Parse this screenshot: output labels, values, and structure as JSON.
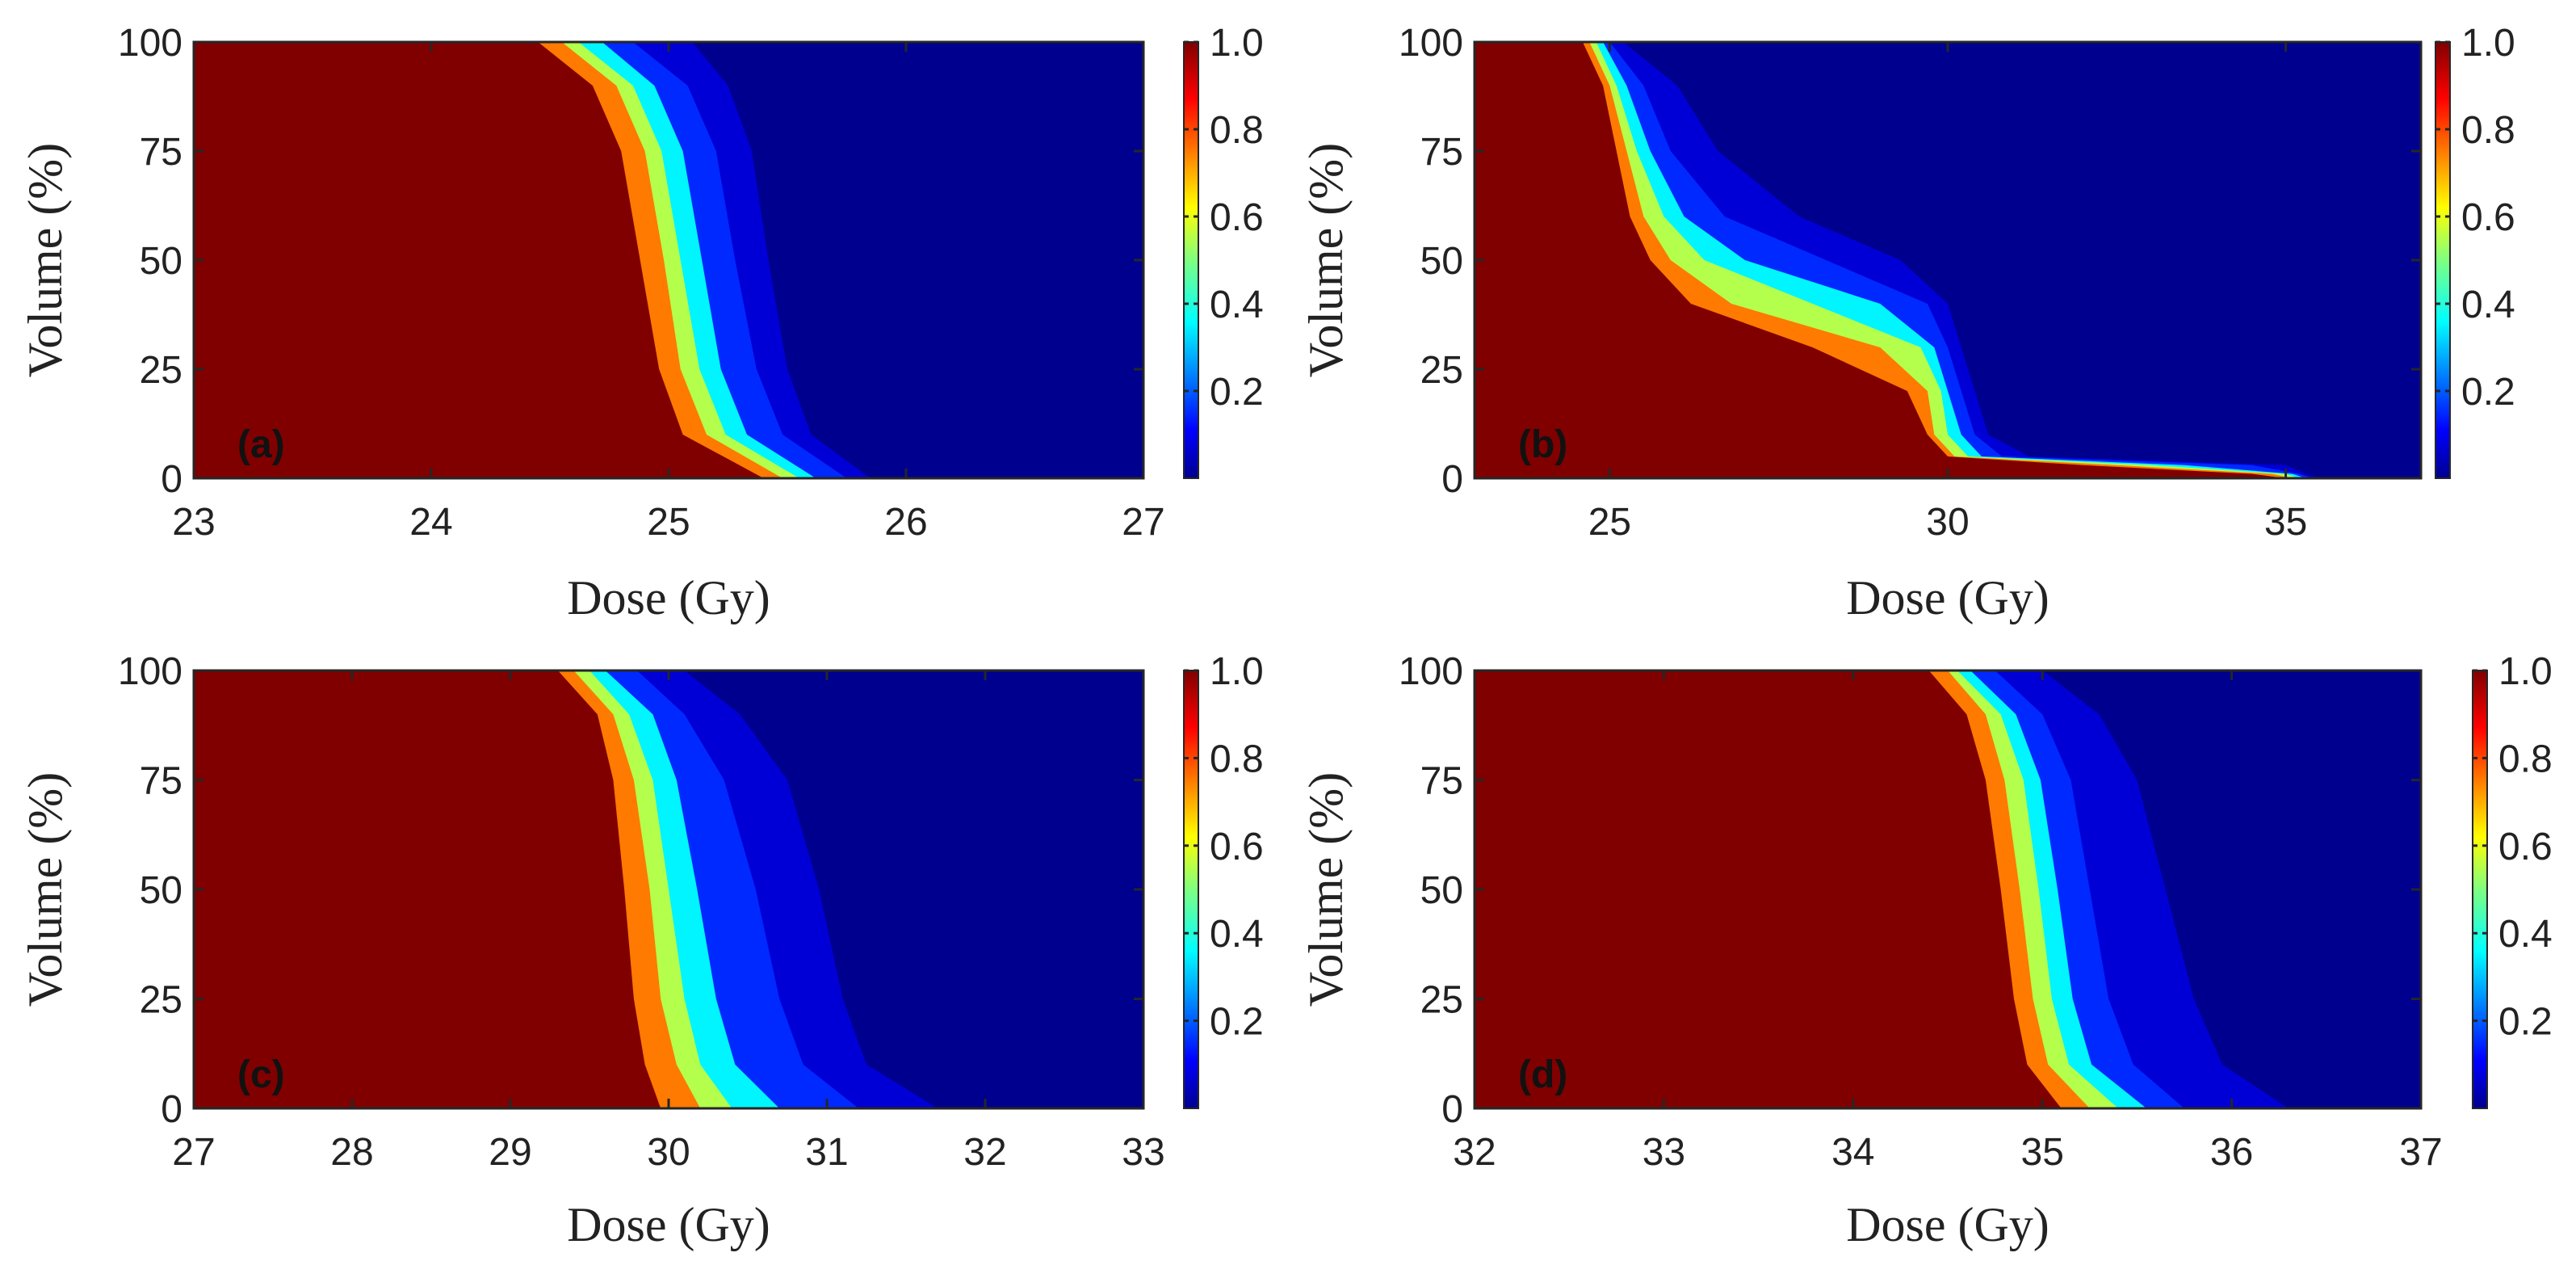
{
  "chart_data": [
    {
      "type": "heatmap",
      "panel_label": "(a)",
      "xlabel": "Dose (Gy)",
      "ylabel": "Volume (%)",
      "xlim": [
        23,
        27
      ],
      "ylim": [
        0,
        100
      ],
      "xticks": [
        23,
        24,
        25,
        26,
        27
      ],
      "xtick_labels": [
        "23",
        "24",
        "25",
        "26",
        "27"
      ],
      "yticks": [
        0,
        25,
        50,
        75,
        100
      ],
      "ytick_labels": [
        "0",
        "25",
        "50",
        "75",
        "100"
      ],
      "colorbar": {
        "range": [
          0,
          1
        ],
        "ticks": [
          0.2,
          0.4,
          0.6,
          0.8,
          1.0
        ],
        "tick_labels": [
          "0.2",
          "0.4",
          "0.6",
          "0.8",
          "1.0"
        ]
      },
      "volume_levels": [
        100,
        90,
        75,
        50,
        25,
        10,
        0
      ],
      "band_dose": {
        "0.9": [
          24.45,
          24.68,
          24.8,
          24.88,
          24.96,
          25.06,
          25.4
        ],
        "0.7": [
          24.55,
          24.78,
          24.9,
          24.98,
          25.05,
          25.16,
          25.48
        ],
        "0.5": [
          24.62,
          24.85,
          24.97,
          25.05,
          25.13,
          25.24,
          25.55
        ],
        "0.3": [
          24.72,
          24.94,
          25.06,
          25.14,
          25.22,
          25.33,
          25.62
        ],
        "0.1": [
          24.85,
          25.08,
          25.2,
          25.28,
          25.37,
          25.48,
          25.75
        ],
        "0.02": [
          25.1,
          25.25,
          25.35,
          25.42,
          25.5,
          25.6,
          25.85
        ]
      }
    },
    {
      "type": "heatmap",
      "panel_label": "(b)",
      "xlabel": "Dose (Gy)",
      "ylabel": "Volume (%)",
      "xlim": [
        23,
        37
      ],
      "ylim": [
        0,
        100
      ],
      "xticks": [
        25,
        30,
        35
      ],
      "xtick_labels": [
        "25",
        "30",
        "35"
      ],
      "yticks": [
        0,
        25,
        50,
        75,
        100
      ],
      "ytick_labels": [
        "0",
        "25",
        "50",
        "75",
        "100"
      ],
      "colorbar": {
        "range": [
          0,
          1
        ],
        "ticks": [
          0.2,
          0.4,
          0.6,
          0.8,
          1.0
        ],
        "tick_labels": [
          "0.2",
          "0.4",
          "0.6",
          "0.8",
          "1.0"
        ]
      },
      "volume_levels": [
        100,
        90,
        75,
        60,
        50,
        40,
        30,
        20,
        10,
        5,
        3,
        1,
        0
      ],
      "band_dose": {
        "0.9": [
          24.6,
          24.9,
          25.1,
          25.3,
          25.6,
          26.2,
          28.0,
          29.4,
          29.7,
          30.0,
          32.0,
          34.5,
          35.0
        ],
        "0.7": [
          24.7,
          25.0,
          25.25,
          25.5,
          25.9,
          26.8,
          29.0,
          29.7,
          29.8,
          30.1,
          32.5,
          34.8,
          35.1
        ],
        "0.5": [
          24.8,
          25.1,
          25.4,
          25.8,
          26.4,
          28.0,
          29.6,
          29.9,
          30.0,
          30.3,
          33.0,
          35.0,
          35.2
        ],
        "0.3": [
          24.9,
          25.25,
          25.6,
          26.1,
          27.0,
          29.0,
          29.8,
          30.0,
          30.2,
          30.5,
          33.5,
          35.1,
          35.3
        ],
        "0.1": [
          25.0,
          25.5,
          25.9,
          26.7,
          28.2,
          29.7,
          30.0,
          30.2,
          30.4,
          30.8,
          34.5,
          35.2,
          35.4
        ],
        "0.02": [
          25.2,
          26.0,
          26.6,
          27.8,
          29.3,
          30.0,
          30.2,
          30.4,
          30.6,
          31.2,
          35.0,
          35.3,
          35.5
        ]
      }
    },
    {
      "type": "heatmap",
      "panel_label": "(c)",
      "xlabel": "Dose (Gy)",
      "ylabel": "Volume (%)",
      "xlim": [
        27,
        33
      ],
      "ylim": [
        0,
        100
      ],
      "xticks": [
        27,
        28,
        29,
        30,
        31,
        32,
        33
      ],
      "xtick_labels": [
        "27",
        "28",
        "29",
        "30",
        "31",
        "32",
        "33"
      ],
      "yticks": [
        0,
        25,
        50,
        75,
        100
      ],
      "ytick_labels": [
        "0",
        "25",
        "50",
        "75",
        "100"
      ],
      "colorbar": {
        "range": [
          0,
          1
        ],
        "ticks": [
          0.2,
          0.4,
          0.6,
          0.8,
          1.0
        ],
        "tick_labels": [
          "0.2",
          "0.4",
          "0.6",
          "0.8",
          "1.0"
        ]
      },
      "volume_levels": [
        100,
        90,
        75,
        50,
        25,
        10,
        0
      ],
      "band_dose": {
        "0.9": [
          29.3,
          29.55,
          29.65,
          29.72,
          29.78,
          29.85,
          29.95
        ],
        "0.7": [
          29.4,
          29.65,
          29.78,
          29.88,
          29.95,
          30.05,
          30.2
        ],
        "0.5": [
          29.5,
          29.75,
          29.9,
          30.0,
          30.1,
          30.2,
          30.4
        ],
        "0.3": [
          29.6,
          29.9,
          30.05,
          30.18,
          30.3,
          30.42,
          30.7
        ],
        "0.1": [
          29.8,
          30.1,
          30.35,
          30.55,
          30.7,
          30.85,
          31.2
        ],
        "0.02": [
          30.1,
          30.45,
          30.75,
          30.95,
          31.1,
          31.25,
          31.7
        ]
      }
    },
    {
      "type": "heatmap",
      "panel_label": "(d)",
      "xlabel": "Dose (Gy)",
      "ylabel": "Volume (%)",
      "xlim": [
        32,
        37
      ],
      "ylim": [
        0,
        100
      ],
      "xticks": [
        32,
        33,
        34,
        35,
        36,
        37
      ],
      "xtick_labels": [
        "32",
        "33",
        "34",
        "35",
        "36",
        "37"
      ],
      "yticks": [
        0,
        25,
        50,
        75,
        100
      ],
      "ytick_labels": [
        "0",
        "25",
        "50",
        "75",
        "100"
      ],
      "colorbar": {
        "range": [
          0,
          1
        ],
        "ticks": [
          0.2,
          0.4,
          0.6,
          0.8,
          1.0
        ],
        "tick_labels": [
          "0.2",
          "0.4",
          "0.6",
          "0.8",
          "1.0"
        ]
      },
      "volume_levels": [
        100,
        90,
        75,
        50,
        25,
        10,
        0
      ],
      "band_dose": {
        "0.9": [
          34.4,
          34.6,
          34.7,
          34.78,
          34.85,
          34.92,
          35.1
        ],
        "0.7": [
          34.5,
          34.7,
          34.8,
          34.88,
          34.95,
          35.03,
          35.25
        ],
        "0.5": [
          34.55,
          34.78,
          34.9,
          34.98,
          35.05,
          35.14,
          35.4
        ],
        "0.3": [
          34.62,
          34.86,
          34.99,
          35.08,
          35.16,
          35.26,
          35.55
        ],
        "0.1": [
          34.75,
          35.0,
          35.15,
          35.25,
          35.35,
          35.48,
          35.75
        ],
        "0.02": [
          35.0,
          35.3,
          35.5,
          35.65,
          35.8,
          35.95,
          36.3
        ]
      }
    }
  ]
}
